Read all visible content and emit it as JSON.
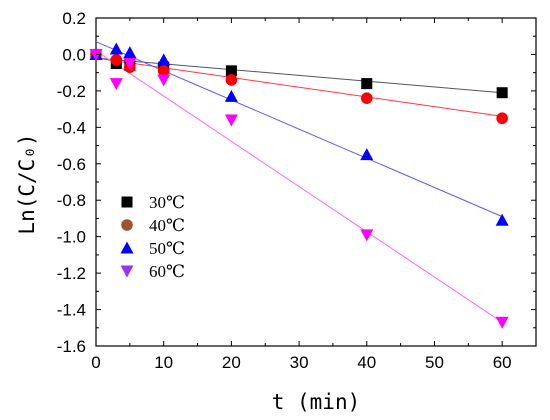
{
  "chart_data": {
    "type": "scatter",
    "xlabel": "t (min)",
    "ylabel": "Ln(C/C₀)",
    "xlim": [
      0,
      65
    ],
    "ylim": [
      -1.6,
      0.2
    ],
    "x_ticks": [
      0,
      10,
      20,
      30,
      40,
      50,
      60
    ],
    "y_ticks": [
      0.2,
      0.0,
      -0.2,
      -0.4,
      -0.6,
      -0.8,
      -1.0,
      -1.2,
      -1.4,
      -1.6
    ],
    "x_tick_labels": [
      "0",
      "10",
      "20",
      "30",
      "40",
      "50",
      "60"
    ],
    "y_tick_labels": [
      "0.2",
      "0.0",
      "-0.2",
      "-0.4",
      "-0.6",
      "-0.8",
      "-1.0",
      "-1.2",
      "-1.4",
      "-1.6"
    ],
    "legend_position": "bottom-left",
    "series": [
      {
        "name": "30℃",
        "marker": "square",
        "color": "#000000",
        "line_color": "#555555",
        "x": [
          0,
          3,
          5,
          10,
          20,
          40,
          60
        ],
        "y": [
          0.0,
          -0.05,
          -0.06,
          -0.07,
          -0.09,
          -0.16,
          -0.21
        ],
        "fit_line": [
          [
            0,
            -0.02
          ],
          [
            60,
            -0.21
          ]
        ]
      },
      {
        "name": "40℃",
        "marker": "circle",
        "color": "#ff0000",
        "legend_color": "#a0522d",
        "line_color": "#ff3b3b",
        "x": [
          0,
          3,
          5,
          10,
          20,
          40,
          60
        ],
        "y": [
          0.0,
          -0.03,
          -0.07,
          -0.09,
          -0.14,
          -0.24,
          -0.35
        ],
        "fit_line": [
          [
            0,
            -0.02
          ],
          [
            60,
            -0.34
          ]
        ]
      },
      {
        "name": "50℃",
        "marker": "triangle-up",
        "color": "#0000ff",
        "line_color": "#5a5aff",
        "x": [
          0,
          3,
          5,
          10,
          20,
          40,
          60
        ],
        "y": [
          0.0,
          0.03,
          0.01,
          -0.03,
          -0.23,
          -0.55,
          -0.91
        ],
        "fit_line": [
          [
            0,
            0.07
          ],
          [
            60,
            -0.89
          ]
        ]
      },
      {
        "name": "60℃",
        "marker": "triangle-down",
        "color": "#ff00ff",
        "legend_color": "#9b30ff",
        "line_color": "#ff66ff",
        "x": [
          0,
          3,
          5,
          10,
          20,
          40,
          60
        ],
        "y": [
          0.0,
          -0.16,
          -0.05,
          -0.14,
          -0.36,
          -0.99,
          -1.47
        ],
        "fit_line": [
          [
            0,
            0.02
          ],
          [
            60,
            -1.47
          ]
        ]
      }
    ]
  }
}
